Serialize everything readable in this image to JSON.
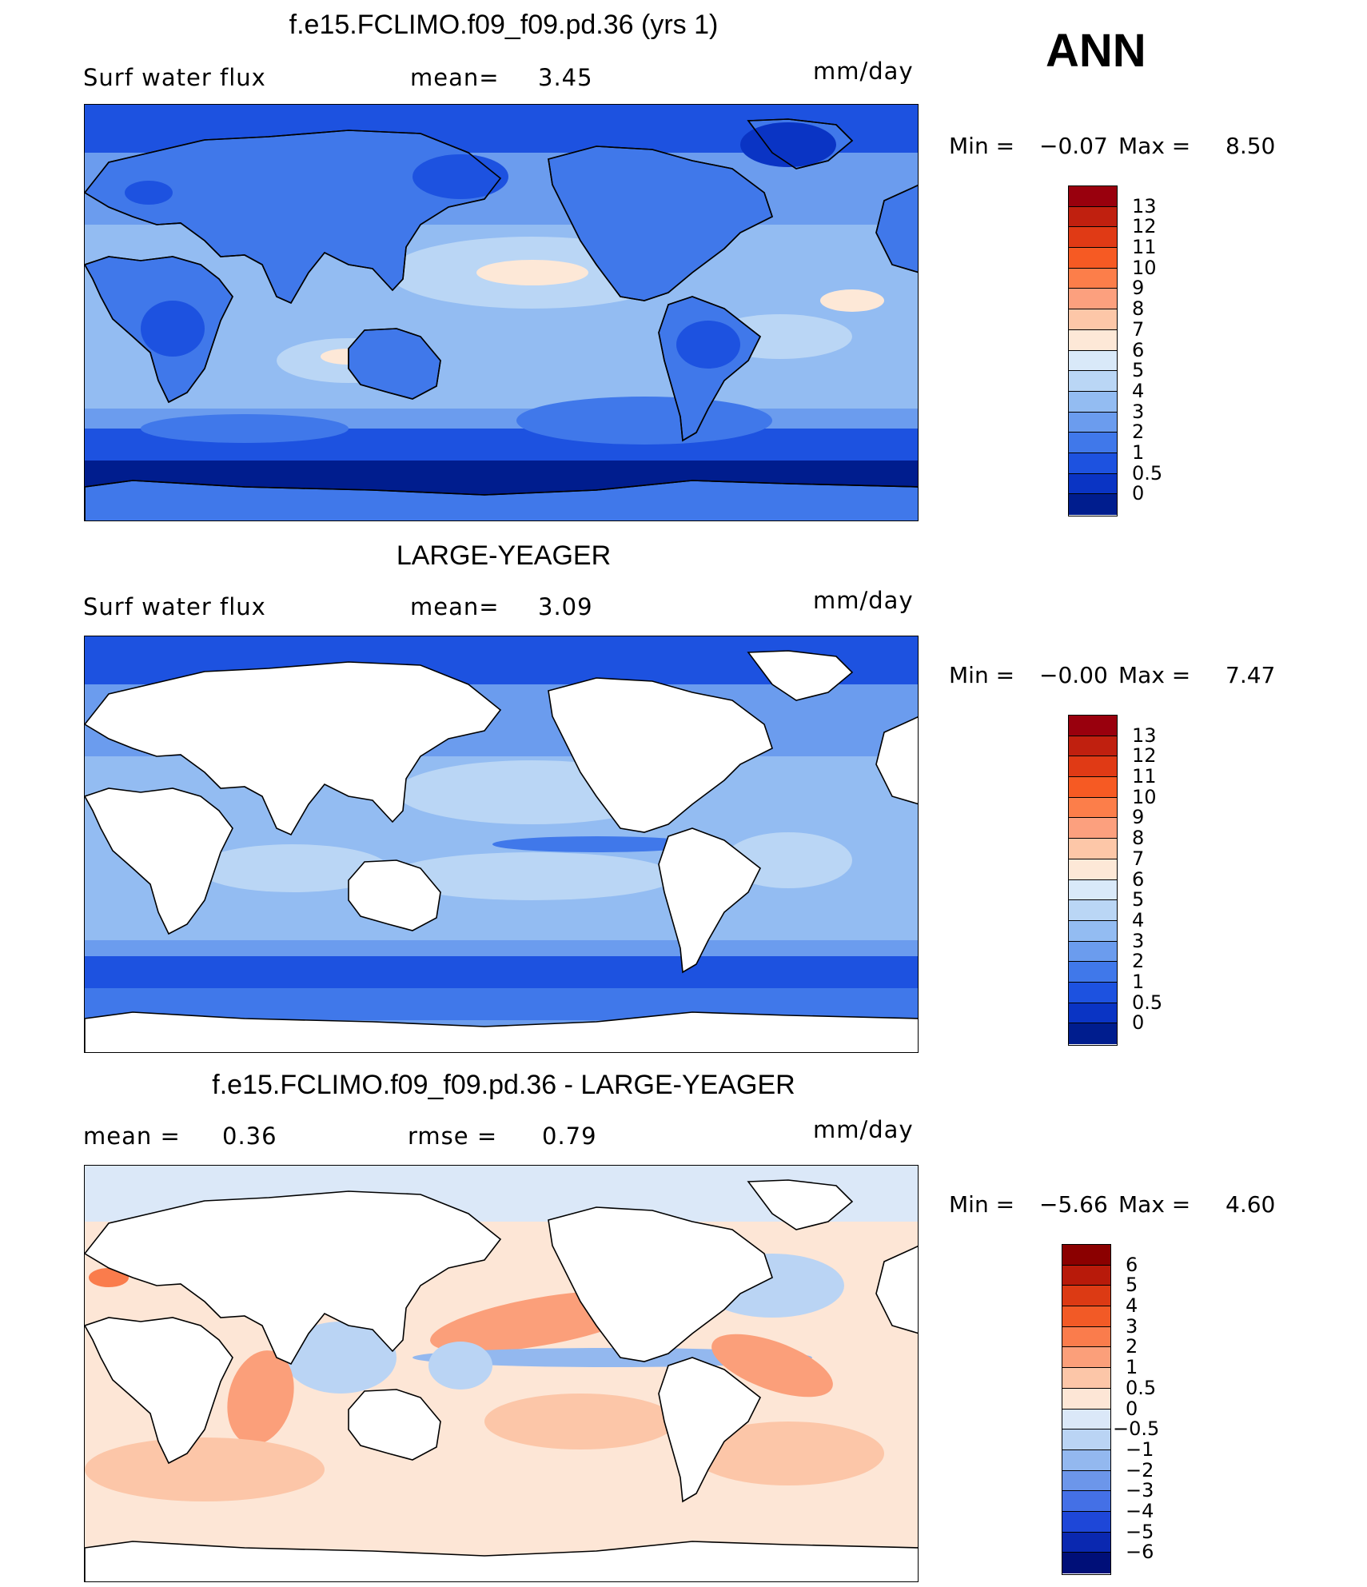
{
  "season": "ANN",
  "panels": [
    {
      "title": "f.e15.FCLIMO.f09_f09.pd.36 (yrs 1)",
      "left_label": "Surf water flux",
      "mid_label": "mean=",
      "mid_value": "3.45",
      "units": "mm/day",
      "min_label": "Min =",
      "min_value": "−0.07",
      "max_label": "Max =",
      "max_value": "8.50",
      "map_style": "model-full",
      "colorbar": {
        "labels": [
          "13",
          "12",
          "11",
          "10",
          "9",
          "8",
          "7",
          "6",
          "5",
          "4",
          "3",
          "2",
          "1",
          "0.5",
          "0"
        ],
        "colors": [
          "#99000d",
          "#c0200f",
          "#e03a15",
          "#f65a23",
          "#fc7e4a",
          "#fca07e",
          "#fdc7a8",
          "#fde8d7",
          "#d9e9f9",
          "#bad6f5",
          "#93bcf2",
          "#6b9cee",
          "#4078ea",
          "#1d52e0",
          "#0a34c4",
          "#001d8e"
        ]
      }
    },
    {
      "title": "LARGE-YEAGER",
      "left_label": "Surf water flux",
      "mid_label": "mean=",
      "mid_value": "3.09",
      "units": "mm/day",
      "min_label": "Min =",
      "min_value": "−0.00",
      "max_label": "Max =",
      "max_value": "7.47",
      "map_style": "obs-ocean",
      "colorbar": {
        "labels": [
          "13",
          "12",
          "11",
          "10",
          "9",
          "8",
          "7",
          "6",
          "5",
          "4",
          "3",
          "2",
          "1",
          "0.5",
          "0"
        ],
        "colors": [
          "#99000d",
          "#c0200f",
          "#e03a15",
          "#f65a23",
          "#fc7e4a",
          "#fca07e",
          "#fdc7a8",
          "#fde8d7",
          "#d9e9f9",
          "#bad6f5",
          "#93bcf2",
          "#6b9cee",
          "#4078ea",
          "#1d52e0",
          "#0a34c4",
          "#001d8e"
        ]
      }
    },
    {
      "title": "f.e15.FCLIMO.f09_f09.pd.36 - LARGE-YEAGER",
      "left_label": "mean =",
      "left_value": "0.36",
      "mid_label": "rmse =",
      "mid_value": "0.79",
      "units": "mm/day",
      "min_label": "Min =",
      "min_value": "−5.66",
      "max_label": "Max =",
      "max_value": "4.60",
      "map_style": "diff",
      "colorbar": {
        "labels": [
          "6",
          "5",
          "4",
          "3",
          "2",
          "1",
          "0.5",
          "0",
          "−0.5",
          "−1",
          "−2",
          "−3",
          "−4",
          "−5",
          "−6"
        ],
        "colors": [
          "#8b0000",
          "#b81a0a",
          "#dc3a14",
          "#f25a26",
          "#fa7c4c",
          "#fb9f7a",
          "#fcc6a8",
          "#fde6d6",
          "#dbe8f8",
          "#bad4f4",
          "#93b8ef",
          "#6c96ea",
          "#4470e6",
          "#1e47d8",
          "#0a28b0",
          "#000f78"
        ]
      }
    }
  ]
}
